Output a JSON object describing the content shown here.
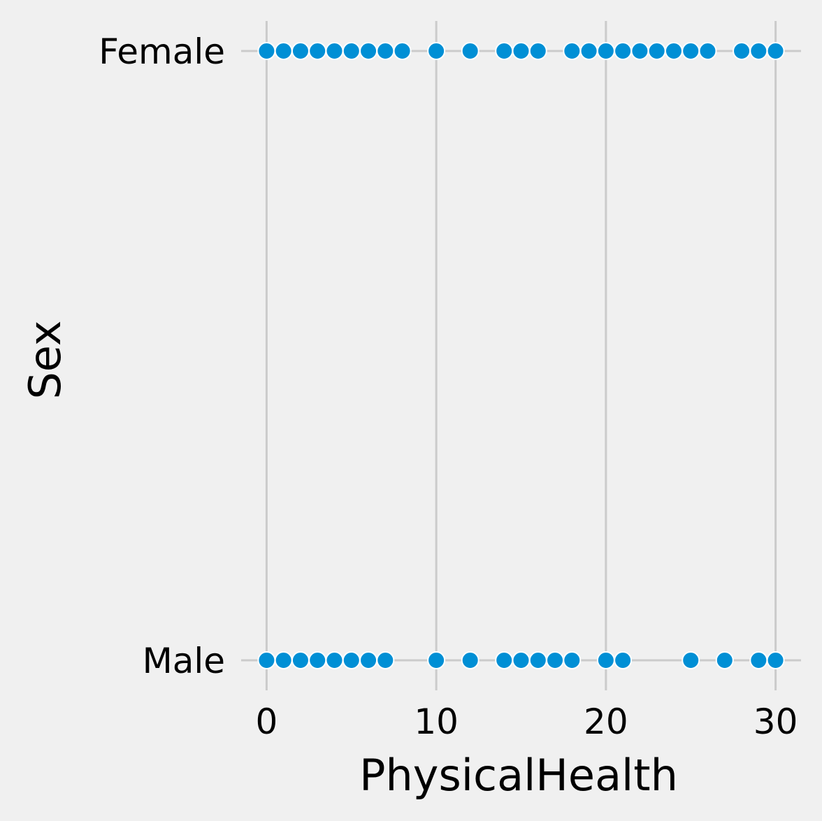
{
  "colors": {
    "background": "#f0f0f0",
    "grid": "#cbcbcb",
    "marker": "#008fd5",
    "marker_edge": "#ffffff"
  },
  "chart_data": {
    "type": "scatter",
    "title": "",
    "xlabel": "PhysicalHealth",
    "ylabel": "Sex",
    "xlim": [
      -1.5,
      31.5
    ],
    "x_ticks": [
      0,
      10,
      20,
      30
    ],
    "categories": [
      "Female",
      "Male"
    ],
    "grid": true,
    "series": [
      {
        "category": "Female",
        "x": [
          0,
          1,
          2,
          3,
          4,
          5,
          6,
          7,
          8,
          10,
          12,
          14,
          15,
          16,
          18,
          19,
          20,
          21,
          22,
          23,
          24,
          25,
          26,
          28,
          29,
          30
        ]
      },
      {
        "category": "Male",
        "x": [
          0,
          1,
          2,
          3,
          4,
          5,
          6,
          7,
          10,
          12,
          14,
          15,
          16,
          17,
          18,
          20,
          21,
          25,
          27,
          29,
          30
        ]
      }
    ]
  }
}
